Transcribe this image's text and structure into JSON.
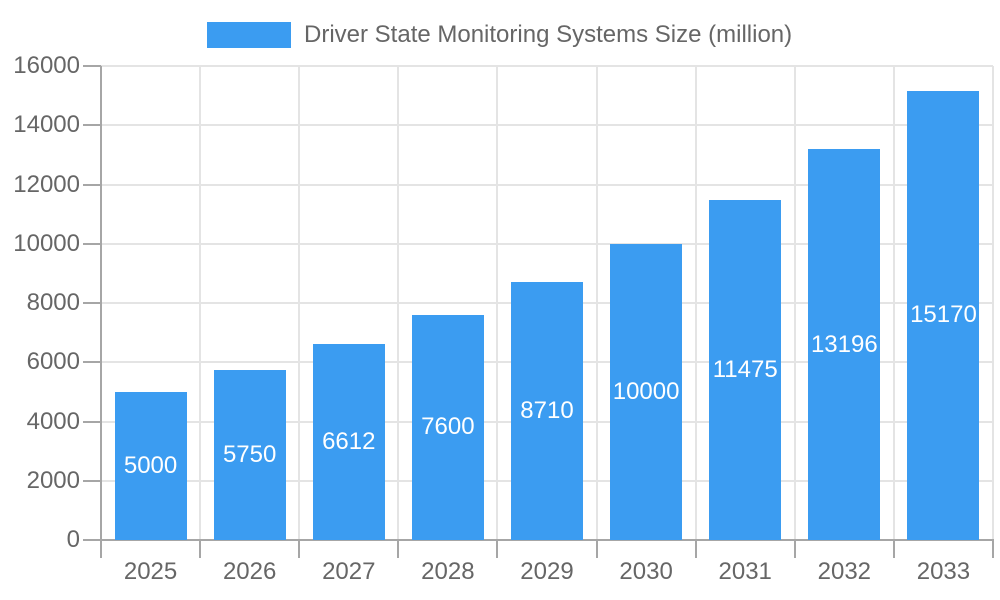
{
  "chart_data": {
    "type": "bar",
    "title": "Driver State Monitoring Systems Size (million)",
    "categories": [
      "2025",
      "2026",
      "2027",
      "2028",
      "2029",
      "2030",
      "2031",
      "2032",
      "2033"
    ],
    "values": [
      5000,
      5750,
      6612,
      7600,
      8710,
      10000,
      11475,
      13196,
      15170
    ],
    "xlabel": "",
    "ylabel": "",
    "ylim": [
      0,
      16000
    ],
    "y_tick_interval": 2000,
    "y_tick_labels": [
      "0",
      "2000",
      "4000",
      "6000",
      "8000",
      "10000",
      "12000",
      "14000",
      "16000"
    ],
    "legend_position": "top",
    "legend_entries": [
      "Driver State Monitoring Systems Size (million)"
    ],
    "grid": "on",
    "value_labels": "inside-center-white"
  },
  "colors": {
    "bar": "#3b9cf1",
    "axis": "#a6a6a6",
    "grid": "#e4e4e4",
    "text": "#666666",
    "bar_label": "#ffffff",
    "background": "#ffffff"
  }
}
